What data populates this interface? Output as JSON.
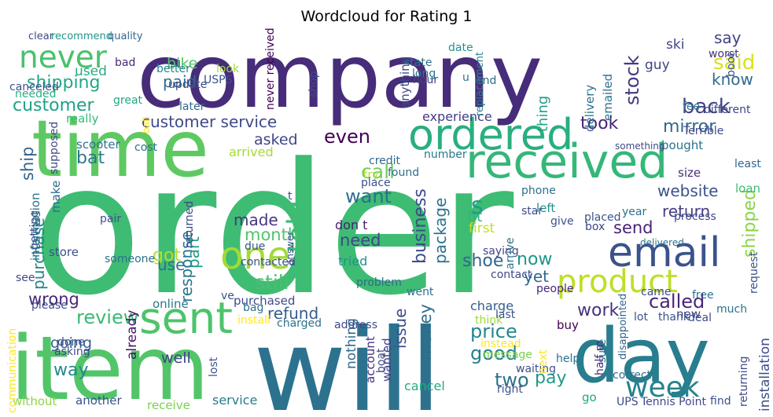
{
  "title": "Wordcloud for Rating 1",
  "palette": "viridis",
  "words": [
    {
      "text": "order",
      "color": "#3ebc73"
    },
    {
      "text": "company",
      "color": "#472c7a"
    },
    {
      "text": "will",
      "color": "#2c728e"
    },
    {
      "text": "item",
      "color": "#52c569"
    },
    {
      "text": "time",
      "color": "#5ec962"
    },
    {
      "text": "day",
      "color": "#287d8e"
    },
    {
      "text": "received",
      "color": "#35b779"
    },
    {
      "text": "email",
      "color": "#3b528b"
    },
    {
      "text": "ordered",
      "color": "#29af7f"
    },
    {
      "text": "sent",
      "color": "#4ec36b"
    },
    {
      "text": "product",
      "color": "#bddf26"
    },
    {
      "text": "one",
      "color": "#a2da37"
    },
    {
      "text": "week",
      "color": "#26828e"
    },
    {
      "text": "never",
      "color": "#4ac16d"
    },
    {
      "text": "customer service",
      "color": "#3e4a89"
    },
    {
      "text": "told",
      "color": "#3dbc74"
    },
    {
      "text": "shipping",
      "color": "#22a884"
    },
    {
      "text": "customer",
      "color": "#1fa187"
    },
    {
      "text": "back",
      "color": "#414487"
    },
    {
      "text": "mirror",
      "color": "#31688e"
    },
    {
      "text": "said",
      "color": "#d8e219"
    },
    {
      "text": "stock",
      "color": "#443983"
    },
    {
      "text": "took",
      "color": "#482475"
    },
    {
      "text": "even",
      "color": "#440154"
    },
    {
      "text": "bat",
      "color": "#2a788e"
    },
    {
      "text": "asked",
      "color": "#3f4788"
    },
    {
      "text": "call",
      "color": "#6ece58"
    },
    {
      "text": "website",
      "color": "#3b528b"
    },
    {
      "text": "return",
      "color": "#433e85"
    },
    {
      "text": "want",
      "color": "#2e6e8e"
    },
    {
      "text": "made",
      "color": "#453781"
    },
    {
      "text": "month",
      "color": "#50c46a"
    },
    {
      "text": "got",
      "color": "#b5de2b"
    },
    {
      "text": "use",
      "color": "#2d708e"
    },
    {
      "text": "still",
      "color": "#48c16e"
    },
    {
      "text": "need",
      "color": "#404688"
    },
    {
      "text": "now",
      "color": "#1f958b"
    },
    {
      "text": "shoe",
      "color": "#33638d"
    },
    {
      "text": "yet",
      "color": "#31678e"
    },
    {
      "text": "send",
      "color": "#482173"
    },
    {
      "text": "shipped",
      "color": "#89d548"
    },
    {
      "text": "business",
      "color": "#3e4989"
    },
    {
      "text": "package",
      "color": "#2c738e"
    },
    {
      "text": "response",
      "color": "#2a768e"
    },
    {
      "text": "purchase",
      "color": "#25848e"
    },
    {
      "text": "part",
      "color": "#1e9c89"
    },
    {
      "text": "ship",
      "color": "#32658e"
    },
    {
      "text": "wrong",
      "color": "#482878"
    },
    {
      "text": "review",
      "color": "#3aba76"
    },
    {
      "text": "refund",
      "color": "#365d8d"
    },
    {
      "text": "called",
      "color": "#482677"
    },
    {
      "text": "work",
      "color": "#46327e"
    },
    {
      "text": "price",
      "color": "#24868e"
    },
    {
      "text": "issue",
      "color": "#3c4f8a"
    },
    {
      "text": "money",
      "color": "#2f6c8e"
    },
    {
      "text": "good",
      "color": "#277f8e"
    },
    {
      "text": "two",
      "color": "#2b748e"
    },
    {
      "text": "pay",
      "color": "#1f9a8a"
    },
    {
      "text": "way",
      "color": "#238a8d"
    },
    {
      "text": "going",
      "color": "#34618d"
    },
    {
      "text": "well",
      "color": "#404588"
    },
    {
      "text": "already",
      "color": "#471164"
    },
    {
      "text": "purchased",
      "color": "#3d4d8a"
    },
    {
      "text": "online",
      "color": "#2a778e"
    },
    {
      "text": "installation",
      "color": "#3e4c8a"
    },
    {
      "text": "paid",
      "color": "#2f6b8e"
    },
    {
      "text": "bike",
      "color": "#52c569"
    },
    {
      "text": "used",
      "color": "#25ab82"
    },
    {
      "text": "say",
      "color": "#414487"
    },
    {
      "text": "know",
      "color": "#306a8e"
    },
    {
      "text": "thing",
      "color": "#1fa188"
    },
    {
      "text": "experience",
      "color": "#443b84"
    },
    {
      "text": "fit",
      "color": "#32b67a"
    },
    {
      "text": "bought",
      "color": "#2c718e"
    },
    {
      "text": "size",
      "color": "#472e7c"
    },
    {
      "text": "loan",
      "color": "#3dbc74"
    },
    {
      "text": "store",
      "color": "#3a538b"
    },
    {
      "text": "arrived",
      "color": "#a5db36"
    },
    {
      "text": "left",
      "color": "#218f8d"
    },
    {
      "text": "first",
      "color": "#c2df23"
    },
    {
      "text": "don t",
      "color": "#481f70"
    },
    {
      "text": "tried",
      "color": "#20928c"
    },
    {
      "text": "charge",
      "color": "#355f8d"
    },
    {
      "text": "buy",
      "color": "#440154"
    },
    {
      "text": "cancel",
      "color": "#25ac82"
    },
    {
      "text": "receive",
      "color": "#7ad151"
    },
    {
      "text": "service",
      "color": "#287c8e"
    },
    {
      "text": "another",
      "color": "#3b528b"
    },
    {
      "text": "without",
      "color": "#8bd646"
    },
    {
      "text": "go",
      "color": "#22a785"
    },
    {
      "text": "nothing",
      "color": "#31688e"
    },
    {
      "text": "s",
      "color": "#1e9c89"
    },
    {
      "text": "guy",
      "color": "#414487"
    },
    {
      "text": "ski",
      "color": "#414487"
    },
    {
      "text": "make",
      "color": "#2e6d8e"
    },
    {
      "text": "information",
      "color": "#2a778e"
    },
    {
      "text": "really",
      "color": "#3aba76"
    },
    {
      "text": "scooter",
      "color": "#2c738e"
    },
    {
      "text": "delivery",
      "color": "#2c718e"
    },
    {
      "text": "emailed",
      "color": "#2d708e"
    },
    {
      "text": "anything",
      "color": "#3e4a89"
    },
    {
      "text": "new",
      "color": "#414487"
    },
    {
      "text": "account",
      "color": "#46337f"
    },
    {
      "text": "wanted",
      "color": "#433e85"
    },
    {
      "text": "instead",
      "color": "#fde725"
    },
    {
      "text": "message",
      "color": "#7ad151"
    },
    {
      "text": "disappointed",
      "color": "#33638d"
    },
    {
      "text": "replacement",
      "color": "#25848e"
    },
    {
      "text": "clear",
      "color": "#3e4a89"
    },
    {
      "text": "recommend",
      "color": "#1f968b"
    },
    {
      "text": "quality",
      "color": "#31688e"
    },
    {
      "text": "canceled",
      "color": "#3b528b"
    },
    {
      "text": "needed",
      "color": "#29af7f"
    },
    {
      "text": "bad",
      "color": "#482878"
    },
    {
      "text": "better",
      "color": "#25848e"
    },
    {
      "text": "update",
      "color": "#3e4a89"
    },
    {
      "text": "USPS",
      "color": "#3b528b"
    },
    {
      "text": "look",
      "color": "#a0da39"
    },
    {
      "text": "great",
      "color": "#22a884"
    },
    {
      "text": "later",
      "color": "#31688e"
    },
    {
      "text": "ball",
      "color": "#fde725"
    },
    {
      "text": "never received",
      "color": "#440154"
    },
    {
      "text": "shop",
      "color": "#3e4a89"
    },
    {
      "text": "date",
      "color": "#21918c"
    },
    {
      "text": "state",
      "color": "#2c728e"
    },
    {
      "text": "hour",
      "color": "#424086"
    },
    {
      "text": "long",
      "color": "#2a788e"
    },
    {
      "text": "u",
      "color": "#2a788e"
    },
    {
      "text": "end",
      "color": "#2f6c8e"
    },
    {
      "text": "worst",
      "color": "#46327e"
    },
    {
      "text": "boot",
      "color": "#3b528b"
    },
    {
      "text": "different",
      "color": "#414487"
    },
    {
      "text": "Terrible",
      "color": "#3e4a89"
    },
    {
      "text": "fee",
      "color": "#2c728e"
    },
    {
      "text": "something",
      "color": "#3e4a89"
    },
    {
      "text": "least",
      "color": "#31688e"
    },
    {
      "text": "number",
      "color": "#2a788e"
    },
    {
      "text": "credit",
      "color": "#31688e"
    },
    {
      "text": "try",
      "color": "#b5de2b"
    },
    {
      "text": "place",
      "color": "#3b528b"
    },
    {
      "text": "found",
      "color": "#2c728e"
    },
    {
      "text": "phone",
      "color": "#2c718e"
    },
    {
      "text": "star",
      "color": "#3e4a89"
    },
    {
      "text": "give",
      "color": "#3b528b"
    },
    {
      "text": "placed",
      "color": "#3b528b"
    },
    {
      "text": "box",
      "color": "#414487"
    },
    {
      "text": "year",
      "color": "#2c718e"
    },
    {
      "text": "process",
      "color": "#3e4a89"
    },
    {
      "text": "delivered",
      "color": "#2c728e"
    },
    {
      "text": "due",
      "color": "#3b528b"
    },
    {
      "text": "contacted",
      "color": "#3b528b"
    },
    {
      "text": "saying",
      "color": "#3e4a89"
    },
    {
      "text": "arrive",
      "color": "#2c718e"
    },
    {
      "text": "contact",
      "color": "#3e4a89"
    },
    {
      "text": "problem",
      "color": "#2f6c8e"
    },
    {
      "text": "pair",
      "color": "#3b528b"
    },
    {
      "text": "returned",
      "color": "#3e4a89"
    },
    {
      "text": "someone",
      "color": "#2c728e"
    },
    {
      "text": "getting",
      "color": "#3b528b"
    },
    {
      "text": "see",
      "color": "#3e4a89"
    },
    {
      "text": "answer",
      "color": "#3b528b"
    },
    {
      "text": "bag",
      "color": "#2c728e"
    },
    {
      "text": "please",
      "color": "#3e4a89"
    },
    {
      "text": "ve",
      "color": "#3b528b"
    },
    {
      "text": "install",
      "color": "#fde725"
    },
    {
      "text": "charged",
      "color": "#2c718e"
    },
    {
      "text": "address",
      "color": "#3e4a89"
    },
    {
      "text": "went",
      "color": "#2c728e"
    },
    {
      "text": "people",
      "color": "#482878"
    },
    {
      "text": "think",
      "color": "#a0da39"
    },
    {
      "text": "last",
      "color": "#3b528b"
    },
    {
      "text": "came",
      "color": "#3e4a89"
    },
    {
      "text": "free",
      "color": "#2c728e"
    },
    {
      "text": "thank",
      "color": "#3b528b"
    },
    {
      "text": "deal",
      "color": "#3e4a89"
    },
    {
      "text": "much",
      "color": "#2c718e"
    },
    {
      "text": "request",
      "color": "#3b528b"
    },
    {
      "text": "returning",
      "color": "#3e4a89"
    },
    {
      "text": "communication",
      "color": "#fde725"
    },
    {
      "text": "asking",
      "color": "#3e4a89"
    },
    {
      "text": "done",
      "color": "#3b528b"
    },
    {
      "text": "lost",
      "color": "#3b528b"
    },
    {
      "text": "boat",
      "color": "#3e4a89"
    },
    {
      "text": "waiting",
      "color": "#3b528b"
    },
    {
      "text": "help",
      "color": "#2c728e"
    },
    {
      "text": "right",
      "color": "#3b528b"
    },
    {
      "text": "next",
      "color": "#fde725"
    },
    {
      "text": "half m",
      "color": "#482878"
    },
    {
      "text": "lot",
      "color": "#3b528b"
    },
    {
      "text": "sure",
      "color": "#2c718e"
    },
    {
      "text": "correct",
      "color": "#2c718e"
    },
    {
      "text": "UPS",
      "color": "#3e4a89"
    },
    {
      "text": "Tennis Point",
      "color": "#3e4a89"
    },
    {
      "text": "find",
      "color": "#3b528b"
    },
    {
      "text": "cost",
      "color": "#2c728e"
    },
    {
      "text": "supposed",
      "color": "#3e4a89"
    },
    {
      "text": "t",
      "color": "#3e4a89"
    }
  ]
}
